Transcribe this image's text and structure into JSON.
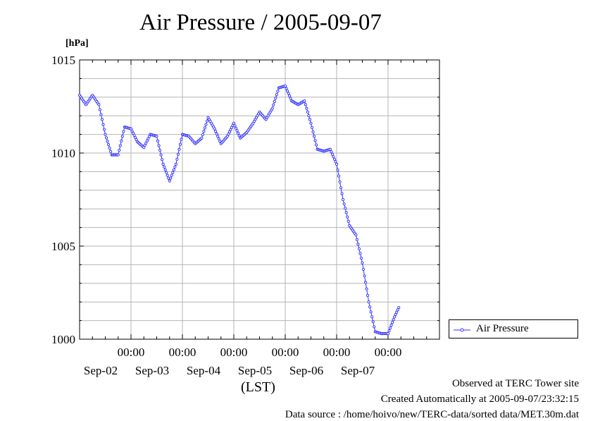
{
  "title": "Air Pressure / 2005-09-07",
  "unit_label": "[hPa]",
  "xlabel": "(LST)",
  "footer": {
    "line1": "Observed at TERC Tower site",
    "line2": "Created Automatically at 2005-09-07/23:32:15",
    "line3": "Data source : /home/hoivo/new/TERC-data/sorted data/MET.30m.dat"
  },
  "colors": {
    "series": "#3333ff",
    "grid": "#b4b4b4"
  },
  "chart_data": {
    "type": "line",
    "ylim": [
      1000,
      1015
    ],
    "yticks": [
      1000,
      1005,
      1010,
      1015
    ],
    "ytick_labels": [
      "1000",
      "1005",
      "1010",
      "1015"
    ],
    "y_minor_step": 1,
    "xlim": [
      "2005-09-01T00:00",
      "2005-09-08T00:00"
    ],
    "x_major_ticks": [
      "2005-09-02T00:00",
      "2005-09-03T00:00",
      "2005-09-04T00:00",
      "2005-09-05T00:00",
      "2005-09-06T00:00",
      "2005-09-07T00:00"
    ],
    "x_tick_time_label": "00:00",
    "x_date_labels": [
      "Sep-02",
      "Sep-03",
      "Sep-04",
      "Sep-05",
      "Sep-06",
      "Sep-07"
    ],
    "x_minor_step_hours": 6,
    "grid": true,
    "legend_position": "right",
    "marker": "circle",
    "series": [
      {
        "name": "Air Pressure",
        "points": [
          [
            "2005-09-01T00:00",
            1013.1
          ],
          [
            "2005-09-01T03:00",
            1012.6
          ],
          [
            "2005-09-01T06:00",
            1013.1
          ],
          [
            "2005-09-01T09:00",
            1012.6
          ],
          [
            "2005-09-01T12:00",
            1011.0
          ],
          [
            "2005-09-01T15:00",
            1009.9
          ],
          [
            "2005-09-01T18:00",
            1009.9
          ],
          [
            "2005-09-01T21:00",
            1011.4
          ],
          [
            "2005-09-02T00:00",
            1011.3
          ],
          [
            "2005-09-02T03:00",
            1010.6
          ],
          [
            "2005-09-02T06:00",
            1010.3
          ],
          [
            "2005-09-02T09:00",
            1011.0
          ],
          [
            "2005-09-02T12:00",
            1010.9
          ],
          [
            "2005-09-02T15:00",
            1009.4
          ],
          [
            "2005-09-02T18:00",
            1008.5
          ],
          [
            "2005-09-02T21:00",
            1009.4
          ],
          [
            "2005-09-03T00:00",
            1011.0
          ],
          [
            "2005-09-03T03:00",
            1010.9
          ],
          [
            "2005-09-03T06:00",
            1010.5
          ],
          [
            "2005-09-03T09:00",
            1010.8
          ],
          [
            "2005-09-03T12:00",
            1011.9
          ],
          [
            "2005-09-03T15:00",
            1011.3
          ],
          [
            "2005-09-03T18:00",
            1010.5
          ],
          [
            "2005-09-03T21:00",
            1010.9
          ],
          [
            "2005-09-04T00:00",
            1011.6
          ],
          [
            "2005-09-04T03:00",
            1010.8
          ],
          [
            "2005-09-04T06:00",
            1011.1
          ],
          [
            "2005-09-04T09:00",
            1011.6
          ],
          [
            "2005-09-04T12:00",
            1012.2
          ],
          [
            "2005-09-04T15:00",
            1011.8
          ],
          [
            "2005-09-04T18:00",
            1012.4
          ],
          [
            "2005-09-04T21:00",
            1013.5
          ],
          [
            "2005-09-05T00:00",
            1013.6
          ],
          [
            "2005-09-05T03:00",
            1012.8
          ],
          [
            "2005-09-05T06:00",
            1012.6
          ],
          [
            "2005-09-05T09:00",
            1012.8
          ],
          [
            "2005-09-05T12:00",
            1011.6
          ],
          [
            "2005-09-05T15:00",
            1010.2
          ],
          [
            "2005-09-05T18:00",
            1010.1
          ],
          [
            "2005-09-05T21:00",
            1010.2
          ],
          [
            "2005-09-06T00:00",
            1009.4
          ],
          [
            "2005-09-06T03:00",
            1007.5
          ],
          [
            "2005-09-06T06:00",
            1006.1
          ],
          [
            "2005-09-06T09:00",
            1005.6
          ],
          [
            "2005-09-06T12:00",
            1004.1
          ],
          [
            "2005-09-06T15:00",
            1002.0
          ],
          [
            "2005-09-06T18:00",
            1000.4
          ],
          [
            "2005-09-06T21:00",
            1000.3
          ],
          [
            "2005-09-07T00:00",
            1000.3
          ],
          [
            "2005-09-07T03:00",
            1001.2
          ],
          [
            "2005-09-07T05:00",
            1001.7
          ]
        ]
      }
    ]
  }
}
